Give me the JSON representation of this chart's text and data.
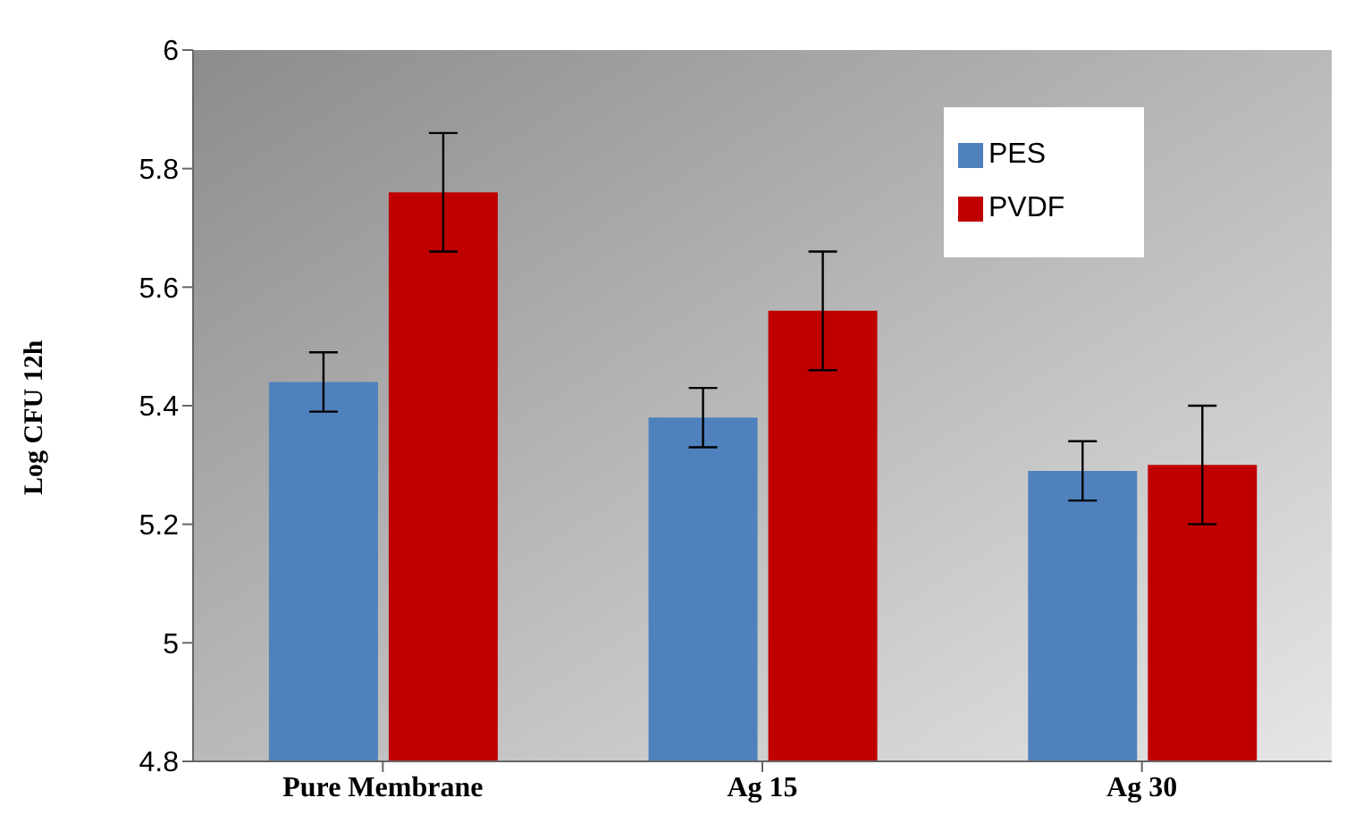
{
  "chart_data": {
    "type": "bar",
    "ylabel": "Log CFU 12h",
    "categories": [
      "Pure Membrane",
      "Ag 15",
      "Ag 30"
    ],
    "series": [
      {
        "name": "PES",
        "color": "#4f81bd",
        "values": [
          5.44,
          5.38,
          5.29
        ],
        "errors": [
          0.05,
          0.05,
          0.05
        ]
      },
      {
        "name": "PVDF",
        "color": "#c00000",
        "values": [
          5.76,
          5.56,
          5.3
        ],
        "errors": [
          0.1,
          0.1,
          0.1
        ]
      }
    ],
    "ylim": [
      4.8,
      6
    ],
    "yticks": [
      4.8,
      5,
      5.2,
      5.4,
      5.6,
      5.8,
      6
    ],
    "grid": false,
    "legend": "top right"
  }
}
